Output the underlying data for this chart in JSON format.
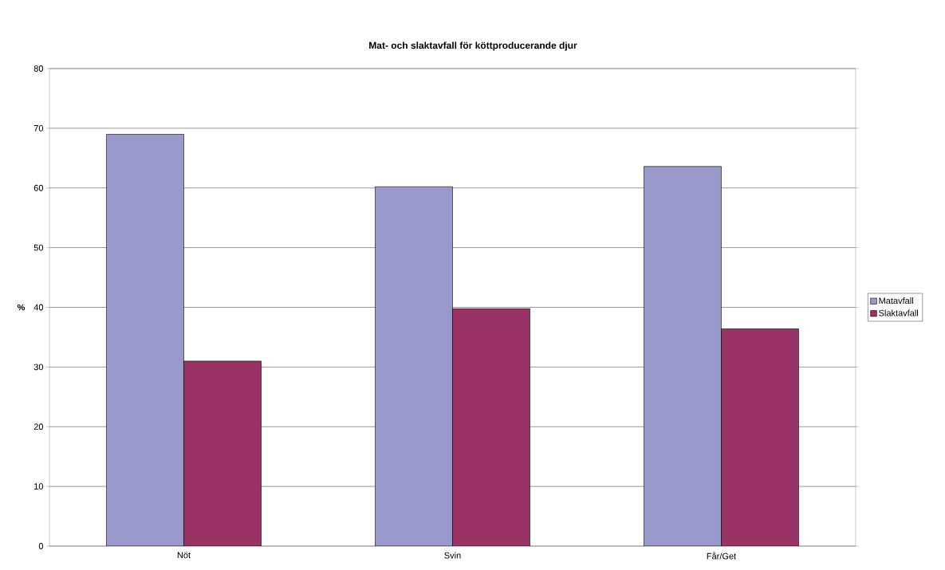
{
  "chart_data": {
    "type": "bar",
    "title": "Mat- och slaktavfall för köttproducerande djur",
    "ylabel": "%",
    "categories": [
      "Nöt",
      "Svin",
      "Får/Get"
    ],
    "series": [
      {
        "name": "Matavfall",
        "color": "#9999cc",
        "values": [
          69,
          60.2,
          63.6
        ]
      },
      {
        "name": "Slaktavfall",
        "color": "#993366",
        "values": [
          31,
          39.8,
          36.4
        ]
      }
    ],
    "ylim": [
      0,
      80
    ],
    "yticks": [
      0,
      10,
      20,
      30,
      40,
      50,
      60,
      70,
      80
    ],
    "grid": "y",
    "legend": "right"
  }
}
